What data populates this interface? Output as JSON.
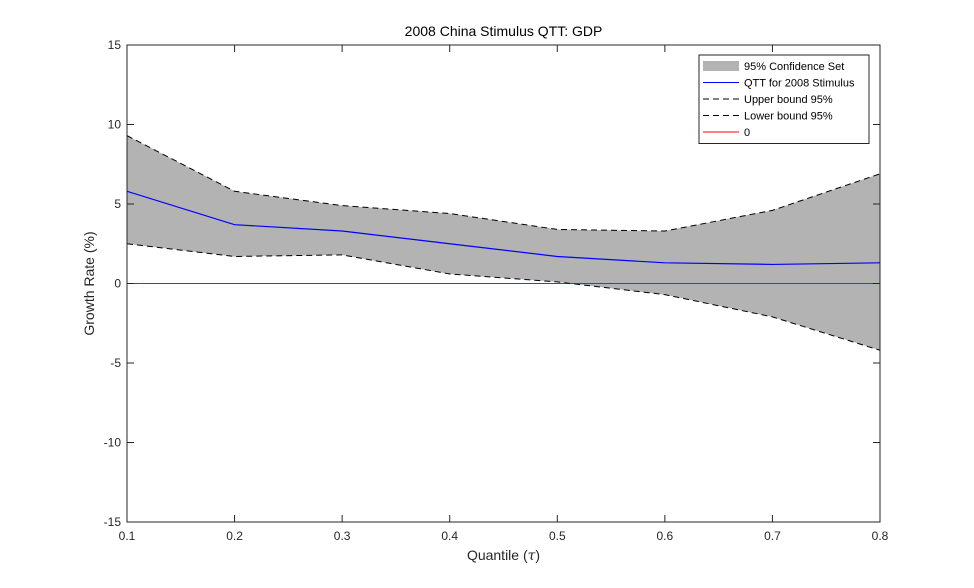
{
  "chart_data": {
    "type": "line",
    "title": "2008 China Stimulus QTT: GDP",
    "xlabel_text": "Quantile (",
    "xlabel_symbol": "τ",
    "xlabel_end": ")",
    "ylabel": "Growth Rate (%)",
    "xlim": [
      0.1,
      0.8
    ],
    "ylim": [
      -15,
      15
    ],
    "xticks": [
      0.1,
      0.2,
      0.3,
      0.4,
      0.5,
      0.6,
      0.7,
      0.8
    ],
    "xtick_labels": [
      "0.1",
      "0.2",
      "0.3",
      "0.4",
      "0.5",
      "0.6",
      "0.7",
      "0.8"
    ],
    "yticks": [
      -15,
      -10,
      -5,
      0,
      5,
      10,
      15
    ],
    "ytick_labels": [
      "-15",
      "-10",
      "-5",
      "0",
      "5",
      "10",
      "15"
    ],
    "grid": false,
    "legend_position": "top-right",
    "x": [
      0.1,
      0.2,
      0.3,
      0.4,
      0.5,
      0.6,
      0.7,
      0.8
    ],
    "series": [
      {
        "name": "95% Confidence Set",
        "kind": "band",
        "color": "#b3b3b3"
      },
      {
        "name": "QTT for 2008 Stimulus",
        "kind": "line",
        "color": "#0000ff",
        "values": [
          5.8,
          3.7,
          3.3,
          2.5,
          1.7,
          1.3,
          1.2,
          1.3
        ]
      },
      {
        "name": "Upper bound 95%",
        "kind": "dashed",
        "color": "#000000",
        "values": [
          9.3,
          5.8,
          4.9,
          4.4,
          3.4,
          3.3,
          4.6,
          6.9
        ]
      },
      {
        "name": "Lower bound 95%",
        "kind": "dashed",
        "color": "#000000",
        "values": [
          2.5,
          1.7,
          1.8,
          0.6,
          0.1,
          -0.7,
          -2.1,
          -4.2
        ]
      },
      {
        "name": "0",
        "kind": "line",
        "color": "#ff0000",
        "values": [
          0,
          0,
          0,
          0,
          0,
          0,
          0,
          0
        ]
      }
    ]
  }
}
